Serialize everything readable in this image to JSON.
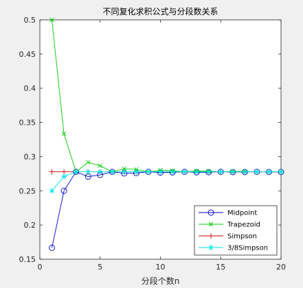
{
  "chart_data": {
    "type": "line",
    "title": "不同复化求积公式与分段数关系",
    "xlabel": "分段个数n",
    "ylabel": "",
    "xlim": [
      0,
      20
    ],
    "ylim": [
      0.15,
      0.5
    ],
    "xticks": [
      0,
      5,
      10,
      15,
      20
    ],
    "yticks": [
      0.15,
      0.2,
      0.25,
      0.3,
      0.35,
      0.4,
      0.45,
      0.5
    ],
    "xtick_labels": [
      "0",
      "5",
      "10",
      "15",
      "20"
    ],
    "ytick_labels": [
      "0.15",
      "0.2",
      "0.25",
      "0.3",
      "0.35",
      "0.4",
      "0.45",
      "0.5"
    ],
    "grid": false,
    "legend_position": "bottom-right",
    "x": [
      1,
      2,
      3,
      4,
      5,
      6,
      7,
      8,
      9,
      10,
      11,
      12,
      13,
      14,
      15,
      16,
      17,
      18,
      19,
      20
    ],
    "series": [
      {
        "name": "Midpoint",
        "color": "#0000cc",
        "marker": "circle",
        "values": [
          0.1667,
          0.25,
          0.2778,
          0.2708,
          0.2733,
          0.2778,
          0.2755,
          0.276,
          0.2778,
          0.2767,
          0.277,
          0.2778,
          0.2771,
          0.2772,
          0.2778,
          0.2774,
          0.2775,
          0.2778,
          0.2776,
          0.2776
        ]
      },
      {
        "name": "Trapezoid",
        "color": "#00cc00",
        "marker": "x",
        "values": [
          0.5,
          0.3333,
          0.2778,
          0.2917,
          0.2867,
          0.2778,
          0.2823,
          0.2813,
          0.2778,
          0.28,
          0.2795,
          0.2778,
          0.279,
          0.2788,
          0.2778,
          0.2785,
          0.2784,
          0.2778,
          0.2781,
          0.2781
        ]
      },
      {
        "name": "Simpson",
        "color": "#cc0000",
        "marker": "plus",
        "values": [
          0.2778,
          0.2778,
          0.2778,
          0.2778,
          0.2778,
          0.2778,
          0.2778,
          0.2778,
          0.2778,
          0.2778,
          0.2778,
          0.2778,
          0.2778,
          0.2778,
          0.2778,
          0.2778,
          0.2778,
          0.2778,
          0.2778,
          0.2778
        ]
      },
      {
        "name": "3/8Simpson",
        "color": "#00e5e5",
        "marker": "star",
        "values": [
          0.25,
          0.2708,
          0.2778,
          0.2778,
          0.2778,
          0.2778,
          0.2778,
          0.2778,
          0.2778,
          0.2778,
          0.2778,
          0.2778,
          0.2778,
          0.2778,
          0.2778,
          0.2778,
          0.2778,
          0.2778,
          0.2778,
          0.2778
        ]
      }
    ]
  }
}
